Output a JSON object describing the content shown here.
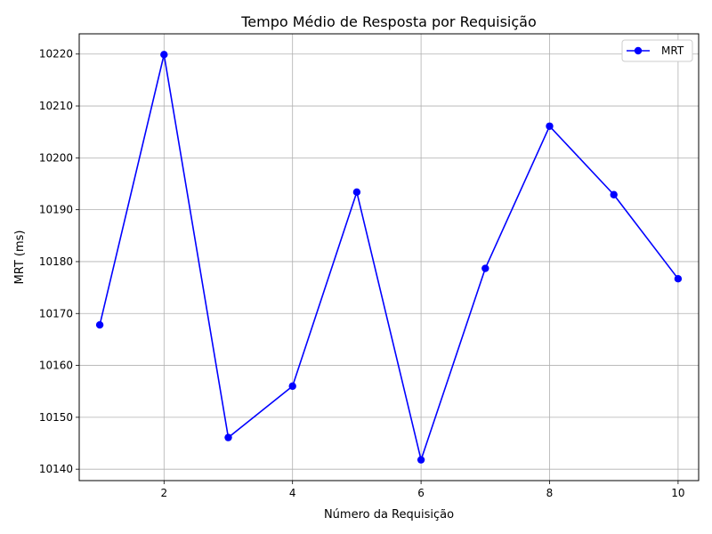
{
  "chart_data": {
    "type": "line",
    "title": "Tempo Médio de Resposta por Requisição",
    "xlabel": "Número da Requisição",
    "ylabel": "MRT (ms)",
    "x": [
      1,
      2,
      3,
      4,
      5,
      6,
      7,
      8,
      9,
      10
    ],
    "xlim": [
      0.68,
      10.32
    ],
    "ylim": [
      10137.8,
      10223.9
    ],
    "xticks": [
      2,
      4,
      6,
      8,
      10
    ],
    "yticks": [
      10140,
      10150,
      10160,
      10170,
      10180,
      10190,
      10200,
      10210,
      10220
    ],
    "grid": true,
    "legend_position": "top-right",
    "series": [
      {
        "name": "MRT",
        "color": "#0000ff",
        "marker": "circle",
        "values": [
          10167.8,
          10219.9,
          10146.1,
          10156.0,
          10193.4,
          10141.8,
          10178.7,
          10206.1,
          10192.9,
          10176.7
        ]
      }
    ]
  }
}
